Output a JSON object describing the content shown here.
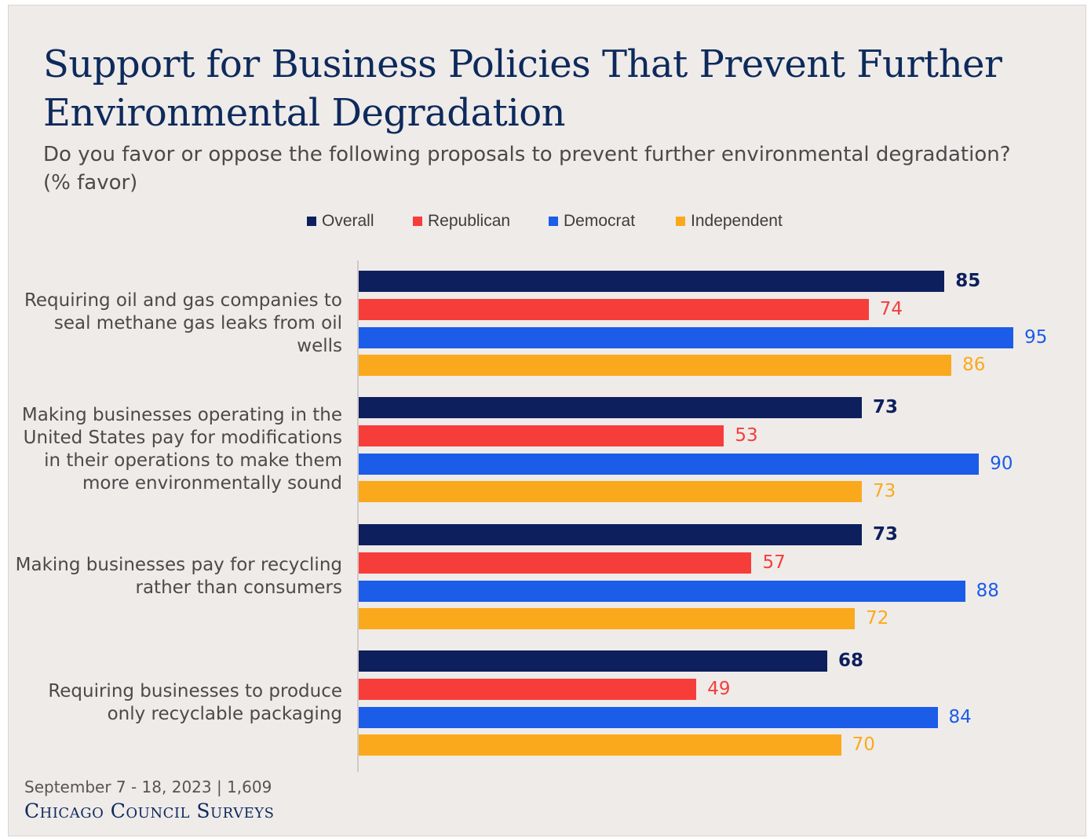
{
  "title": "Support for Business Policies That Prevent Further Environmental Degradation",
  "subtitle": "Do you favor or oppose the following proposals to prevent further environmental degradation? (% favor)",
  "footer": {
    "date": "September 7 - 18, 2023 | 1,609",
    "brand": "Chicago Council Surveys"
  },
  "colors": {
    "overall": "#0d1f5c",
    "republican": "#f63d3a",
    "democrat": "#1b5ce8",
    "independent": "#fba91c"
  },
  "chart_data": {
    "type": "bar",
    "orientation": "horizontal",
    "title": "Support for Business Policies That Prevent Further Environmental Degradation",
    "subtitle": "Do you favor or oppose the following proposals to prevent further environmental degradation? (% favor)",
    "categories": [
      "Requiring oil and gas companies to seal methane gas leaks from oil wells",
      "Making businesses operating in the United States pay for modifications in their operations to make them more environmentally sound",
      "Making businesses pay for recycling rather than consumers",
      "Requiring businesses to produce only recyclable packaging"
    ],
    "series": [
      {
        "name": "Overall",
        "values": [
          85,
          73,
          73,
          68
        ]
      },
      {
        "name": "Republican",
        "values": [
          74,
          53,
          57,
          49
        ]
      },
      {
        "name": "Democrat",
        "values": [
          95,
          90,
          88,
          84
        ]
      },
      {
        "name": "Independent",
        "values": [
          86,
          73,
          72,
          70
        ]
      }
    ],
    "xlim": [
      0,
      100
    ],
    "grid": false,
    "legend_position": "top"
  }
}
